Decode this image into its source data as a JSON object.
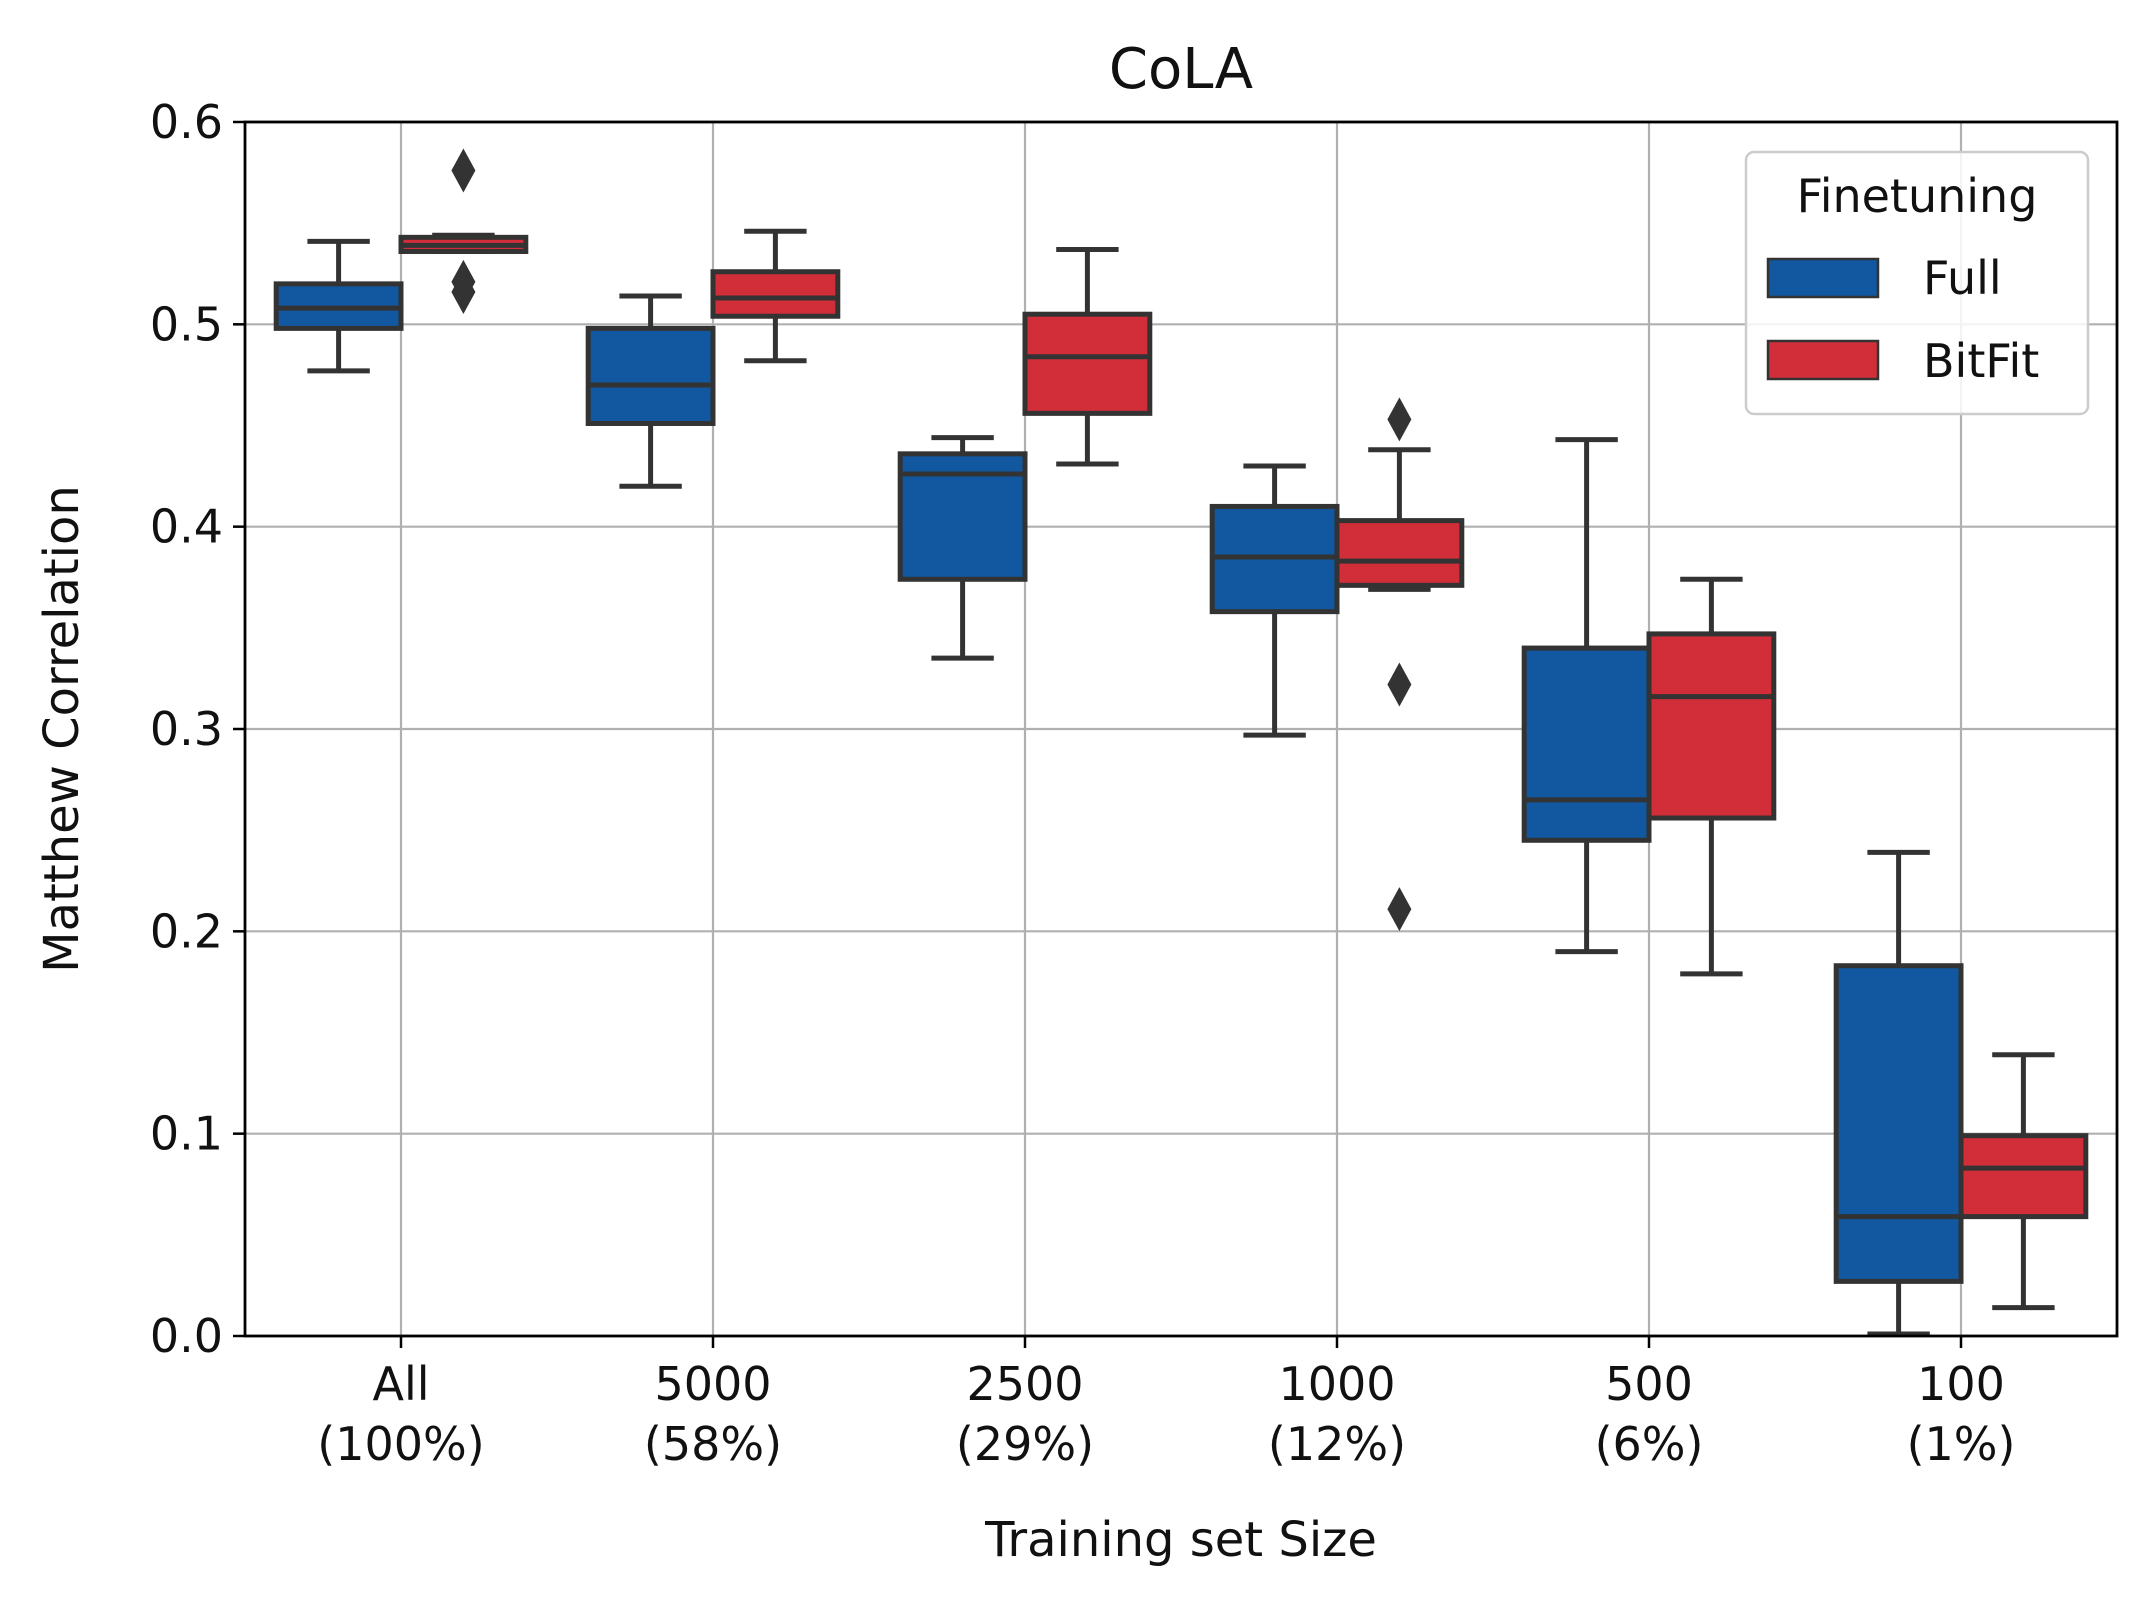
{
  "chart_data": {
    "type": "box",
    "title": "CoLA",
    "xlabel": "Training set Size",
    "ylabel": "Matthew Correlation",
    "ylim": [
      0.0,
      0.6
    ],
    "yticks": [
      "0.0",
      "0.1",
      "0.2",
      "0.3",
      "0.4",
      "0.5",
      "0.6"
    ],
    "grid": true,
    "categories": [
      {
        "line1": "All",
        "line2": "(100%)"
      },
      {
        "line1": "5000",
        "line2": "(58%)"
      },
      {
        "line1": "2500",
        "line2": "(29%)"
      },
      {
        "line1": "1000",
        "line2": "(12%)"
      },
      {
        "line1": "500",
        "line2": "(6%)"
      },
      {
        "line1": "100",
        "line2": "(1%)"
      }
    ],
    "legend": {
      "title": "Finetuning",
      "placement": "top-right"
    },
    "series": [
      {
        "name": "Full",
        "color": "#1158a0",
        "boxes": [
          {
            "whisker_low": 0.477,
            "q1": 0.498,
            "median": 0.508,
            "q3": 0.52,
            "whisker_high": 0.541,
            "outliers": []
          },
          {
            "whisker_low": 0.42,
            "q1": 0.451,
            "median": 0.47,
            "q3": 0.498,
            "whisker_high": 0.514,
            "outliers": []
          },
          {
            "whisker_low": 0.335,
            "q1": 0.374,
            "median": 0.426,
            "q3": 0.436,
            "whisker_high": 0.444,
            "outliers": []
          },
          {
            "whisker_low": 0.297,
            "q1": 0.358,
            "median": 0.385,
            "q3": 0.41,
            "whisker_high": 0.43,
            "outliers": []
          },
          {
            "whisker_low": 0.19,
            "q1": 0.245,
            "median": 0.265,
            "q3": 0.34,
            "whisker_high": 0.443,
            "outliers": []
          },
          {
            "whisker_low": 0.001,
            "q1": 0.027,
            "median": 0.059,
            "q3": 0.183,
            "whisker_high": 0.239,
            "outliers": []
          }
        ]
      },
      {
        "name": "BitFit",
        "color": "#d12e3a",
        "boxes": [
          {
            "whisker_low": 0.536,
            "q1": 0.536,
            "median": 0.539,
            "q3": 0.543,
            "whisker_high": 0.544,
            "outliers": [
              0.576,
              0.521,
              0.516
            ]
          },
          {
            "whisker_low": 0.482,
            "q1": 0.504,
            "median": 0.513,
            "q3": 0.526,
            "whisker_high": 0.546,
            "outliers": []
          },
          {
            "whisker_low": 0.431,
            "q1": 0.456,
            "median": 0.484,
            "q3": 0.505,
            "whisker_high": 0.537,
            "outliers": []
          },
          {
            "whisker_low": 0.369,
            "q1": 0.371,
            "median": 0.383,
            "q3": 0.403,
            "whisker_high": 0.438,
            "outliers": [
              0.453,
              0.322,
              0.211
            ]
          },
          {
            "whisker_low": 0.179,
            "q1": 0.256,
            "median": 0.316,
            "q3": 0.347,
            "whisker_high": 0.374,
            "outliers": []
          },
          {
            "whisker_low": 0.014,
            "q1": 0.059,
            "median": 0.083,
            "q3": 0.099,
            "whisker_high": 0.139,
            "outliers": []
          }
        ]
      }
    ]
  }
}
